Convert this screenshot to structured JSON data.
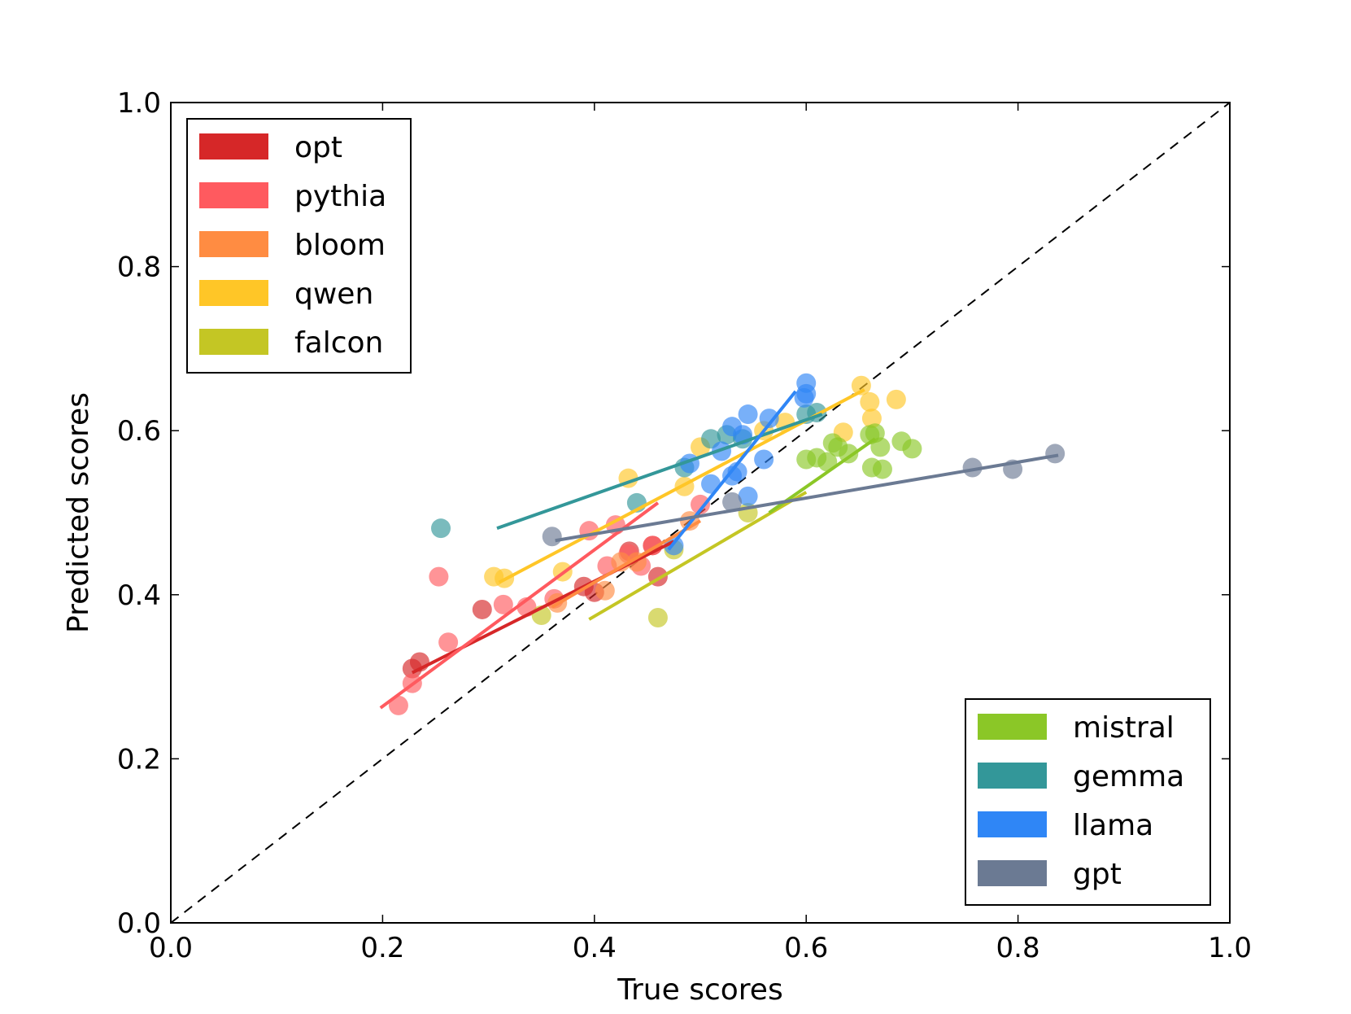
{
  "chart_data": {
    "type": "scatter",
    "title": "",
    "xlabel": "True scores",
    "ylabel": "Predicted scores",
    "xlim": [
      0.0,
      1.0
    ],
    "ylim": [
      0.0,
      1.0
    ],
    "xticks": [
      "0.0",
      "0.2",
      "0.4",
      "0.6",
      "0.8",
      "1.0"
    ],
    "yticks": [
      "0.0",
      "0.2",
      "0.4",
      "0.6",
      "0.8",
      "1.0"
    ],
    "reference_line": {
      "style": "dashed",
      "from": [
        0.0,
        0.0
      ],
      "to": [
        1.0,
        1.0
      ],
      "color": "#000000"
    },
    "legends": [
      {
        "placement": "top-left",
        "entries": [
          "opt",
          "pythia",
          "bloom",
          "qwen",
          "falcon"
        ]
      },
      {
        "placement": "bottom-right",
        "entries": [
          "mistral",
          "gemma",
          "llama",
          "gpt"
        ]
      }
    ],
    "series": [
      {
        "name": "opt",
        "color": "#d62728",
        "points": [
          [
            0.228,
            0.31
          ],
          [
            0.235,
            0.318
          ],
          [
            0.294,
            0.382
          ],
          [
            0.39,
            0.41
          ],
          [
            0.4,
            0.403
          ],
          [
            0.433,
            0.453
          ],
          [
            0.46,
            0.422
          ],
          [
            0.455,
            0.46
          ]
        ],
        "fit": [
          [
            0.228,
            0.305
          ],
          [
            0.475,
            0.465
          ]
        ]
      },
      {
        "name": "pythia",
        "color": "#ff5a5f",
        "points": [
          [
            0.215,
            0.265
          ],
          [
            0.228,
            0.292
          ],
          [
            0.253,
            0.422
          ],
          [
            0.262,
            0.342
          ],
          [
            0.314,
            0.388
          ],
          [
            0.336,
            0.385
          ],
          [
            0.362,
            0.395
          ],
          [
            0.395,
            0.478
          ],
          [
            0.412,
            0.435
          ],
          [
            0.42,
            0.485
          ],
          [
            0.432,
            0.45
          ],
          [
            0.444,
            0.435
          ],
          [
            0.455,
            0.46
          ],
          [
            0.5,
            0.51
          ]
        ],
        "fit": [
          [
            0.198,
            0.262
          ],
          [
            0.46,
            0.512
          ]
        ]
      },
      {
        "name": "bloom",
        "color": "#ff8c42",
        "points": [
          [
            0.365,
            0.39
          ],
          [
            0.41,
            0.405
          ],
          [
            0.425,
            0.44
          ],
          [
            0.44,
            0.44
          ],
          [
            0.49,
            0.49
          ]
        ],
        "fit": [
          [
            0.36,
            0.385
          ],
          [
            0.5,
            0.49
          ]
        ]
      },
      {
        "name": "qwen",
        "color": "#ffc627",
        "points": [
          [
            0.305,
            0.422
          ],
          [
            0.315,
            0.42
          ],
          [
            0.37,
            0.428
          ],
          [
            0.432,
            0.542
          ],
          [
            0.485,
            0.532
          ],
          [
            0.5,
            0.58
          ],
          [
            0.56,
            0.6
          ],
          [
            0.58,
            0.61
          ],
          [
            0.635,
            0.598
          ],
          [
            0.652,
            0.655
          ],
          [
            0.66,
            0.635
          ],
          [
            0.662,
            0.615
          ],
          [
            0.685,
            0.638
          ]
        ],
        "fit": [
          [
            0.31,
            0.415
          ],
          [
            0.655,
            0.65
          ]
        ]
      },
      {
        "name": "falcon",
        "color": "#c4c624",
        "points": [
          [
            0.35,
            0.375
          ],
          [
            0.46,
            0.372
          ],
          [
            0.475,
            0.455
          ],
          [
            0.545,
            0.5
          ]
        ],
        "fit": [
          [
            0.395,
            0.37
          ],
          [
            0.6,
            0.525
          ]
        ]
      },
      {
        "name": "mistral",
        "color": "#8bc727",
        "points": [
          [
            0.6,
            0.565
          ],
          [
            0.61,
            0.567
          ],
          [
            0.62,
            0.562
          ],
          [
            0.625,
            0.585
          ],
          [
            0.63,
            0.58
          ],
          [
            0.64,
            0.572
          ],
          [
            0.66,
            0.595
          ],
          [
            0.662,
            0.555
          ],
          [
            0.665,
            0.597
          ],
          [
            0.67,
            0.58
          ],
          [
            0.672,
            0.553
          ],
          [
            0.69,
            0.587
          ],
          [
            0.7,
            0.578
          ]
        ],
        "fit": [
          [
            0.565,
            0.5
          ],
          [
            0.665,
            0.59
          ]
        ]
      },
      {
        "name": "gemma",
        "color": "#339799",
        "points": [
          [
            0.255,
            0.481
          ],
          [
            0.44,
            0.512
          ],
          [
            0.485,
            0.555
          ],
          [
            0.51,
            0.59
          ],
          [
            0.525,
            0.595
          ],
          [
            0.54,
            0.59
          ],
          [
            0.6,
            0.62
          ],
          [
            0.61,
            0.622
          ]
        ],
        "fit": [
          [
            0.308,
            0.481
          ],
          [
            0.615,
            0.62
          ]
        ]
      },
      {
        "name": "llama",
        "color": "#2f86f6",
        "points": [
          [
            0.475,
            0.46
          ],
          [
            0.49,
            0.56
          ],
          [
            0.51,
            0.535
          ],
          [
            0.52,
            0.575
          ],
          [
            0.53,
            0.605
          ],
          [
            0.53,
            0.545
          ],
          [
            0.535,
            0.55
          ],
          [
            0.54,
            0.595
          ],
          [
            0.545,
            0.52
          ],
          [
            0.545,
            0.62
          ],
          [
            0.56,
            0.565
          ],
          [
            0.565,
            0.615
          ],
          [
            0.598,
            0.64
          ],
          [
            0.6,
            0.658
          ],
          [
            0.6,
            0.645
          ]
        ],
        "fit": [
          [
            0.47,
            0.455
          ],
          [
            0.59,
            0.648
          ]
        ]
      },
      {
        "name": "gpt",
        "color": "#6b7a93",
        "points": [
          [
            0.36,
            0.471
          ],
          [
            0.53,
            0.513
          ],
          [
            0.757,
            0.555
          ],
          [
            0.795,
            0.553
          ],
          [
            0.835,
            0.572
          ]
        ],
        "fit": [
          [
            0.363,
            0.466
          ],
          [
            0.838,
            0.57
          ]
        ]
      }
    ]
  }
}
